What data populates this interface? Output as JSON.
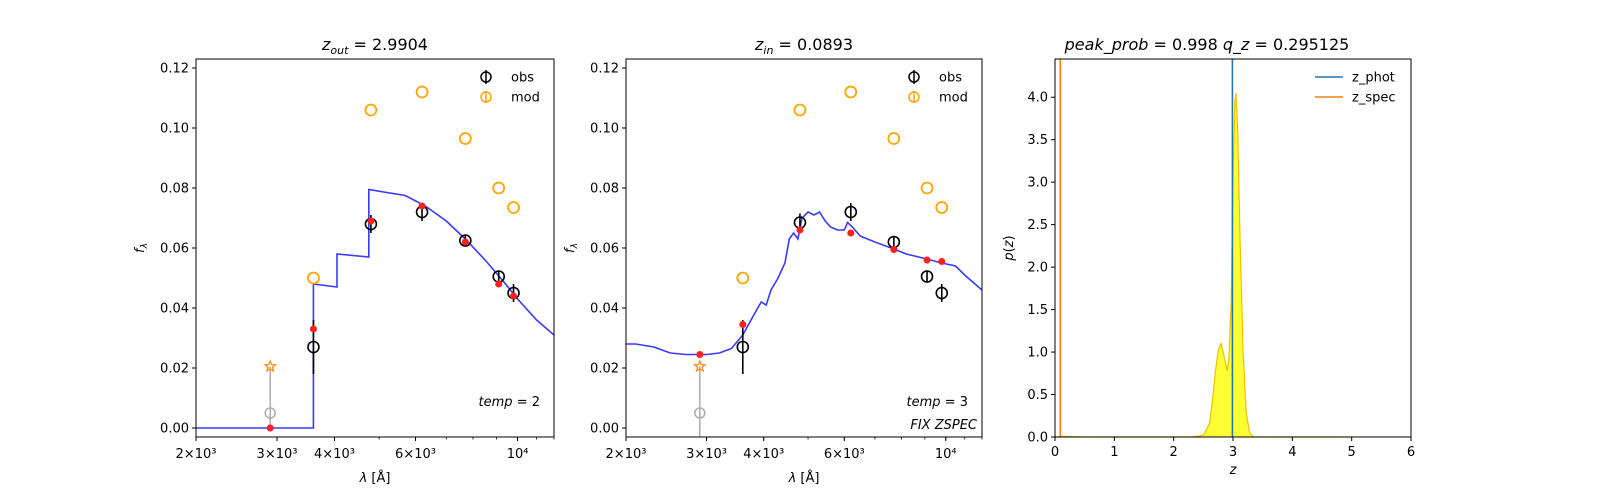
{
  "chart_data": [
    {
      "type": "scatter",
      "title": "z_out = 2.9904",
      "title_parts": {
        "var": "z",
        "sub": "out",
        "value": "= 2.9904"
      },
      "xlabel": "λ [Å]",
      "ylabel": "f_λ",
      "xscale": "log",
      "xlim": [
        2000,
        12000
      ],
      "ylim": [
        -0.003,
        0.123
      ],
      "xticks": [
        {
          "value": 2000,
          "label": "2×10³"
        },
        {
          "value": 3000,
          "label": "3×10³"
        },
        {
          "value": 4000,
          "label": "4×10³"
        },
        {
          "value": 6000,
          "label": "6×10³"
        },
        {
          "value": 10000,
          "label": "10⁴"
        }
      ],
      "yticks": [
        {
          "value": 0.0,
          "label": "0.00"
        },
        {
          "value": 0.02,
          "label": "0.02"
        },
        {
          "value": 0.04,
          "label": "0.04"
        },
        {
          "value": 0.06,
          "label": "0.06"
        },
        {
          "value": 0.08,
          "label": "0.08"
        },
        {
          "value": 0.1,
          "label": "0.10"
        },
        {
          "value": 0.12,
          "label": "0.12"
        }
      ],
      "annotation": "temp = 2",
      "legend": {
        "position": "top-right",
        "entries": [
          "obs",
          "mod"
        ]
      },
      "colors": {
        "obs": "#000000",
        "mod": "#ffa500",
        "model_points": "#ff2020",
        "template": "#3a3aff",
        "masked": "#b0b0b0",
        "star": "#ff8c1a"
      },
      "template_curve": [
        [
          2000,
          0.0
        ],
        [
          3600,
          0.0
        ],
        [
          3600,
          0.048
        ],
        [
          4050,
          0.047
        ],
        [
          4050,
          0.058
        ],
        [
          4750,
          0.057
        ],
        [
          4750,
          0.0795
        ],
        [
          5700,
          0.0775
        ],
        [
          6300,
          0.074
        ],
        [
          7000,
          0.069
        ],
        [
          7700,
          0.063
        ],
        [
          8500,
          0.056
        ],
        [
          9300,
          0.049
        ],
        [
          10000,
          0.043
        ],
        [
          11000,
          0.036
        ],
        [
          12000,
          0.031
        ]
      ],
      "obs": [
        {
          "x": 3600,
          "y": 0.027,
          "err": 0.009
        },
        {
          "x": 4800,
          "y": 0.068,
          "err": 0.003
        },
        {
          "x": 6200,
          "y": 0.072,
          "err": 0.003
        },
        {
          "x": 7700,
          "y": 0.0625,
          "err": 0.002
        },
        {
          "x": 9100,
          "y": 0.0505,
          "err": 0.002
        },
        {
          "x": 9800,
          "y": 0.045,
          "err": 0.003
        }
      ],
      "mod": [
        {
          "x": 3600,
          "y": 0.05
        },
        {
          "x": 4800,
          "y": 0.106
        },
        {
          "x": 6200,
          "y": 0.112
        },
        {
          "x": 7700,
          "y": 0.0965
        },
        {
          "x": 9100,
          "y": 0.08
        },
        {
          "x": 9800,
          "y": 0.0735
        }
      ],
      "model_points": [
        {
          "x": 2900,
          "y": 0.0
        },
        {
          "x": 3600,
          "y": 0.033
        },
        {
          "x": 4800,
          "y": 0.069
        },
        {
          "x": 6200,
          "y": 0.074
        },
        {
          "x": 7700,
          "y": 0.062
        },
        {
          "x": 9100,
          "y": 0.048
        },
        {
          "x": 9800,
          "y": 0.044
        }
      ],
      "masked": {
        "x": 2900,
        "y": 0.005,
        "err_low": 0.005
      },
      "star": {
        "x": 2900,
        "y": 0.0205
      }
    },
    {
      "type": "scatter",
      "title": "z_in = 0.0893",
      "title_parts": {
        "var": "z",
        "sub": "in",
        "value": "= 0.0893"
      },
      "xlabel": "λ [Å]",
      "ylabel": "f_λ",
      "xscale": "log",
      "xlim": [
        2000,
        12000
      ],
      "ylim": [
        -0.003,
        0.123
      ],
      "xticks": [
        {
          "value": 2000,
          "label": "2×10³"
        },
        {
          "value": 3000,
          "label": "3×10³"
        },
        {
          "value": 4000,
          "label": "4×10³"
        },
        {
          "value": 6000,
          "label": "6×10³"
        },
        {
          "value": 10000,
          "label": "10⁴"
        }
      ],
      "yticks": [
        {
          "value": 0.0,
          "label": "0.00"
        },
        {
          "value": 0.02,
          "label": "0.02"
        },
        {
          "value": 0.04,
          "label": "0.04"
        },
        {
          "value": 0.06,
          "label": "0.06"
        },
        {
          "value": 0.08,
          "label": "0.08"
        },
        {
          "value": 0.1,
          "label": "0.10"
        },
        {
          "value": 0.12,
          "label": "0.12"
        }
      ],
      "annotation": "temp = 3",
      "annotation2": "FIX ZSPEC",
      "legend": {
        "position": "top-right",
        "entries": [
          "obs",
          "mod"
        ]
      },
      "colors": {
        "obs": "#000000",
        "mod": "#ffa500",
        "model_points": "#ff2020",
        "template": "#3a3aff",
        "masked": "#b0b0b0",
        "star": "#ff8c1a"
      },
      "template_curve": [
        [
          2000,
          0.028
        ],
        [
          2100,
          0.028
        ],
        [
          2300,
          0.027
        ],
        [
          2500,
          0.025
        ],
        [
          2700,
          0.0245
        ],
        [
          3000,
          0.0245
        ],
        [
          3200,
          0.025
        ],
        [
          3400,
          0.0265
        ],
        [
          3600,
          0.031
        ],
        [
          3800,
          0.0375
        ],
        [
          3950,
          0.042
        ],
        [
          4050,
          0.041
        ],
        [
          4150,
          0.046
        ],
        [
          4300,
          0.05
        ],
        [
          4450,
          0.055
        ],
        [
          4550,
          0.063
        ],
        [
          4650,
          0.065
        ],
        [
          4750,
          0.063
        ],
        [
          4850,
          0.07
        ],
        [
          5000,
          0.072
        ],
        [
          5150,
          0.071
        ],
        [
          5300,
          0.072
        ],
        [
          5450,
          0.069
        ],
        [
          5600,
          0.067
        ],
        [
          5800,
          0.066
        ],
        [
          6000,
          0.066
        ],
        [
          6100,
          0.0685
        ],
        [
          6250,
          0.067
        ],
        [
          6500,
          0.064
        ],
        [
          7000,
          0.062
        ],
        [
          7600,
          0.06
        ],
        [
          8200,
          0.058
        ],
        [
          9000,
          0.0565
        ],
        [
          9800,
          0.055
        ],
        [
          10500,
          0.054
        ],
        [
          11000,
          0.051
        ],
        [
          12000,
          0.046
        ]
      ],
      "obs": [
        {
          "x": 3600,
          "y": 0.027,
          "err": 0.009
        },
        {
          "x": 4800,
          "y": 0.0685,
          "err": 0.003
        },
        {
          "x": 6200,
          "y": 0.072,
          "err": 0.003
        },
        {
          "x": 7700,
          "y": 0.062,
          "err": 0.002
        },
        {
          "x": 9100,
          "y": 0.0505,
          "err": 0.002
        },
        {
          "x": 9800,
          "y": 0.045,
          "err": 0.003
        }
      ],
      "mod": [
        {
          "x": 3600,
          "y": 0.05
        },
        {
          "x": 4800,
          "y": 0.106
        },
        {
          "x": 6200,
          "y": 0.112
        },
        {
          "x": 7700,
          "y": 0.0965
        },
        {
          "x": 9100,
          "y": 0.08
        },
        {
          "x": 9800,
          "y": 0.0735
        }
      ],
      "model_points": [
        {
          "x": 2900,
          "y": 0.0245
        },
        {
          "x": 3600,
          "y": 0.0345
        },
        {
          "x": 4800,
          "y": 0.066
        },
        {
          "x": 6200,
          "y": 0.065
        },
        {
          "x": 7700,
          "y": 0.0595
        },
        {
          "x": 9100,
          "y": 0.056
        },
        {
          "x": 9800,
          "y": 0.0555
        }
      ],
      "masked": {
        "x": 2900,
        "y": 0.005,
        "err_low": 0.008
      },
      "star": {
        "x": 2900,
        "y": 0.0205
      }
    },
    {
      "type": "area",
      "title": "peak_prob = 0.998     q_z = 0.295125",
      "title_parts": {
        "left": "peak_prob",
        "left_value": "= 0.998",
        "right": "q_z",
        "right_value": "= 0.295125"
      },
      "xlabel": "z",
      "ylabel": "p(z)",
      "xlim": [
        0,
        6
      ],
      "ylim": [
        0,
        4.45
      ],
      "xticks": [
        {
          "value": 0,
          "label": "0"
        },
        {
          "value": 1,
          "label": "1"
        },
        {
          "value": 2,
          "label": "2"
        },
        {
          "value": 3,
          "label": "3"
        },
        {
          "value": 4,
          "label": "4"
        },
        {
          "value": 5,
          "label": "5"
        },
        {
          "value": 6,
          "label": "6"
        }
      ],
      "yticks": [
        {
          "value": 0.0,
          "label": "0.0"
        },
        {
          "value": 0.5,
          "label": "0.5"
        },
        {
          "value": 1.0,
          "label": "1.0"
        },
        {
          "value": 1.5,
          "label": "1.5"
        },
        {
          "value": 2.0,
          "label": "2.0"
        },
        {
          "value": 2.5,
          "label": "2.5"
        },
        {
          "value": 3.0,
          "label": "3.0"
        },
        {
          "value": 3.5,
          "label": "3.5"
        },
        {
          "value": 4.0,
          "label": "4.0"
        }
      ],
      "legend": {
        "position": "top-right",
        "entries": [
          "z_phot",
          "z_spec"
        ]
      },
      "z_phot": 2.99,
      "z_spec": 0.0893,
      "colors": {
        "z_phot": "#1f77b4",
        "z_spec": "#ff7f0e",
        "fill": "#ffff33",
        "outline": "#f0c000"
      },
      "pz_curve": [
        [
          0.0,
          0
        ],
        [
          0.09,
          0
        ],
        [
          0.1,
          0.01
        ],
        [
          0.5,
          0.0
        ],
        [
          2.3,
          0.0
        ],
        [
          2.5,
          0.02
        ],
        [
          2.6,
          0.15
        ],
        [
          2.65,
          0.4
        ],
        [
          2.7,
          0.75
        ],
        [
          2.75,
          1.02
        ],
        [
          2.8,
          1.1
        ],
        [
          2.85,
          0.95
        ],
        [
          2.9,
          0.78
        ],
        [
          2.93,
          0.9
        ],
        [
          2.97,
          1.6
        ],
        [
          3.0,
          3.0
        ],
        [
          3.03,
          3.95
        ],
        [
          3.05,
          4.05
        ],
        [
          3.08,
          3.6
        ],
        [
          3.12,
          2.3
        ],
        [
          3.17,
          1.0
        ],
        [
          3.22,
          0.3
        ],
        [
          3.28,
          0.05
        ],
        [
          3.35,
          0.0
        ],
        [
          5.0,
          0.0
        ]
      ]
    }
  ]
}
